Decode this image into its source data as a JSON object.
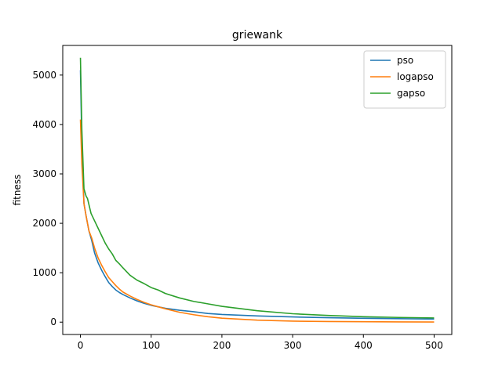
{
  "chart_data": {
    "type": "line",
    "title": "griewank",
    "xlabel": "",
    "ylabel": "fitness",
    "xlim": [
      -25,
      525
    ],
    "ylim": [
      -250,
      5600
    ],
    "xticks": [
      0,
      100,
      200,
      300,
      400,
      500
    ],
    "yticks": [
      0,
      1000,
      2000,
      3000,
      4000,
      5000
    ],
    "legend": "top-right",
    "grid": false,
    "series": [
      {
        "name": "pso",
        "color": "#1f77b4",
        "x": [
          0,
          2,
          5,
          8,
          12,
          16,
          20,
          25,
          30,
          35,
          40,
          45,
          50,
          55,
          60,
          70,
          80,
          90,
          100,
          110,
          120,
          140,
          160,
          180,
          200,
          250,
          300,
          350,
          400,
          450,
          500
        ],
        "y": [
          5100,
          3600,
          2400,
          2150,
          1850,
          1650,
          1400,
          1200,
          1050,
          920,
          800,
          720,
          650,
          600,
          560,
          490,
          430,
          380,
          340,
          310,
          280,
          240,
          210,
          175,
          155,
          125,
          105,
          90,
          78,
          70,
          62
        ]
      },
      {
        "name": "logapso",
        "color": "#ff7f0e",
        "x": [
          0,
          2,
          5,
          8,
          12,
          16,
          20,
          25,
          30,
          35,
          40,
          45,
          50,
          55,
          60,
          70,
          80,
          90,
          100,
          110,
          120,
          140,
          160,
          180,
          200,
          250,
          300,
          350,
          400,
          450,
          500
        ],
        "y": [
          4100,
          3200,
          2400,
          2150,
          1850,
          1700,
          1500,
          1300,
          1150,
          1020,
          900,
          820,
          740,
          670,
          610,
          530,
          460,
          400,
          350,
          310,
          270,
          200,
          150,
          110,
          80,
          40,
          20,
          12,
          8,
          5,
          3
        ]
      },
      {
        "name": "gapso",
        "color": "#2ca02c",
        "x": [
          0,
          2,
          5,
          8,
          10,
          15,
          20,
          25,
          30,
          35,
          40,
          45,
          50,
          55,
          60,
          70,
          80,
          90,
          100,
          110,
          120,
          140,
          160,
          180,
          200,
          250,
          300,
          350,
          400,
          450,
          500
        ],
        "y": [
          5350,
          3900,
          2700,
          2550,
          2500,
          2200,
          2050,
          1900,
          1750,
          1600,
          1480,
          1380,
          1250,
          1180,
          1100,
          950,
          850,
          780,
          700,
          650,
          580,
          490,
          420,
          370,
          320,
          230,
          170,
          135,
          110,
          95,
          85
        ]
      }
    ]
  }
}
